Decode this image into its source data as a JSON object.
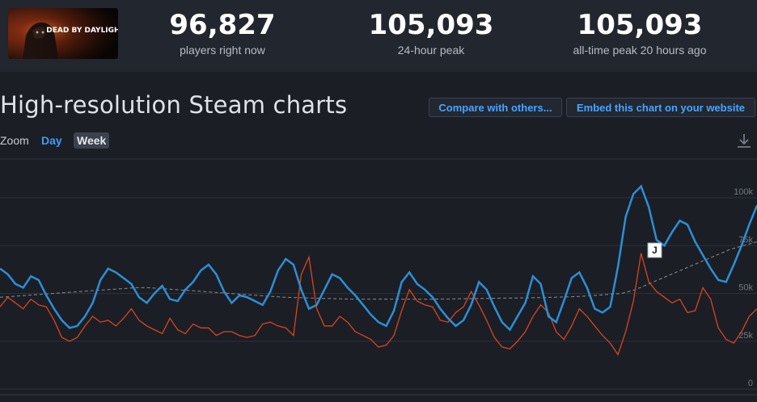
{
  "game": {
    "banner_title": "DEAD BY DAYLIGHT"
  },
  "stats": [
    {
      "value": "96,827",
      "label": "players right now"
    },
    {
      "value": "105,093",
      "label": "24-hour peak"
    },
    {
      "value": "105,093",
      "label": "all-time peak 20 hours ago"
    }
  ],
  "section": {
    "title": "High-resolution Steam charts",
    "compare_label": "Compare with others...",
    "embed_label": "Embed this chart on your website"
  },
  "zoom": {
    "label": "Zoom",
    "options": [
      "Day",
      "Week"
    ],
    "selected": "Week"
  },
  "icons": {
    "download": "download-icon"
  },
  "colors": {
    "background": "#1b1e25",
    "accent": "#3d9bff",
    "players_line": "#2b8fd6",
    "twitch_line": "#d9451f",
    "average_line": "#8a8f99"
  },
  "chart_data": {
    "type": "line",
    "ylim": [
      0,
      112000
    ],
    "yticks": [
      {
        "value": 100000,
        "label": "100k"
      },
      {
        "value": 75000,
        "label": "75k"
      },
      {
        "value": 50000,
        "label": "50k"
      },
      {
        "value": 25000,
        "label": "25k"
      },
      {
        "value": 0,
        "label": "0"
      }
    ],
    "grid": true,
    "series": [
      {
        "values": [
          63000,
          60000,
          55000,
          53000,
          59000,
          57000,
          49000,
          42000,
          36000,
          32000,
          33000,
          38000,
          45000,
          57000,
          63000,
          61000,
          58000,
          55000,
          48000,
          45000,
          50000,
          54000,
          47000,
          46000,
          52000,
          56000,
          62000,
          65000,
          60000,
          51000,
          45000,
          49000,
          48000,
          46000,
          44000,
          51000,
          62000,
          68000,
          65000,
          52000,
          42000,
          44000,
          52000,
          60000,
          58000,
          53000,
          49000,
          44000,
          39000,
          35000,
          33000,
          41000,
          56000,
          61000,
          55000,
          52000,
          48000,
          42000,
          37000,
          33000,
          36000,
          44000,
          56000,
          52000,
          43000,
          35000,
          31000,
          38000,
          45000,
          59000,
          55000,
          38000,
          35000,
          46000,
          58000,
          61000,
          53000,
          42000,
          40000,
          43000,
          64000,
          90000,
          102000,
          106000,
          95000,
          78000,
          75000,
          82000,
          88000,
          86000,
          77000,
          70000,
          63000,
          57000,
          56000,
          65000,
          75000,
          86000,
          96000
        ]
      },
      {
        "values": [
          43000,
          48000,
          45000,
          42000,
          47000,
          44000,
          43000,
          36000,
          27000,
          25000,
          27000,
          33000,
          38000,
          35000,
          36000,
          33000,
          37000,
          42000,
          36000,
          33000,
          31000,
          29000,
          37000,
          31000,
          29000,
          34000,
          32000,
          32000,
          28000,
          30000,
          30000,
          28000,
          27000,
          28000,
          34000,
          35000,
          33000,
          32000,
          28000,
          60000,
          69000,
          42000,
          33000,
          33000,
          38000,
          35000,
          30000,
          28000,
          26000,
          22000,
          23000,
          28000,
          41000,
          52000,
          46000,
          44000,
          43000,
          36000,
          35000,
          40000,
          43000,
          51000,
          44000,
          36000,
          27000,
          22000,
          21000,
          25000,
          30000,
          38000,
          44000,
          40000,
          30000,
          26000,
          33000,
          42000,
          38000,
          33000,
          28000,
          24000,
          18000,
          30000,
          46000,
          71000,
          56000,
          51000,
          48000,
          45000,
          47000,
          40000,
          41000,
          53000,
          47000,
          32000,
          26000,
          24000,
          30000,
          38000,
          42000
        ]
      },
      {
        "values": [
          48000,
          48500,
          49000,
          49500,
          50000,
          50500,
          51000,
          51500,
          52000,
          52500,
          53000,
          53000,
          52500,
          52000,
          51500,
          51000,
          50500,
          50000,
          49500,
          49000,
          48500,
          48000,
          47800,
          47600,
          47400,
          47200,
          47000,
          47000,
          47000,
          47000,
          47000,
          47000,
          47000,
          47100,
          47200,
          47300,
          47400,
          47500,
          47600,
          47700,
          47800,
          48000,
          48200,
          48500,
          49000,
          49500,
          50000,
          52000,
          55000,
          58000,
          61000,
          64000,
          67000,
          70000,
          73000,
          75000,
          77000
        ]
      }
    ],
    "annotations": [
      {
        "label": "J"
      }
    ]
  }
}
